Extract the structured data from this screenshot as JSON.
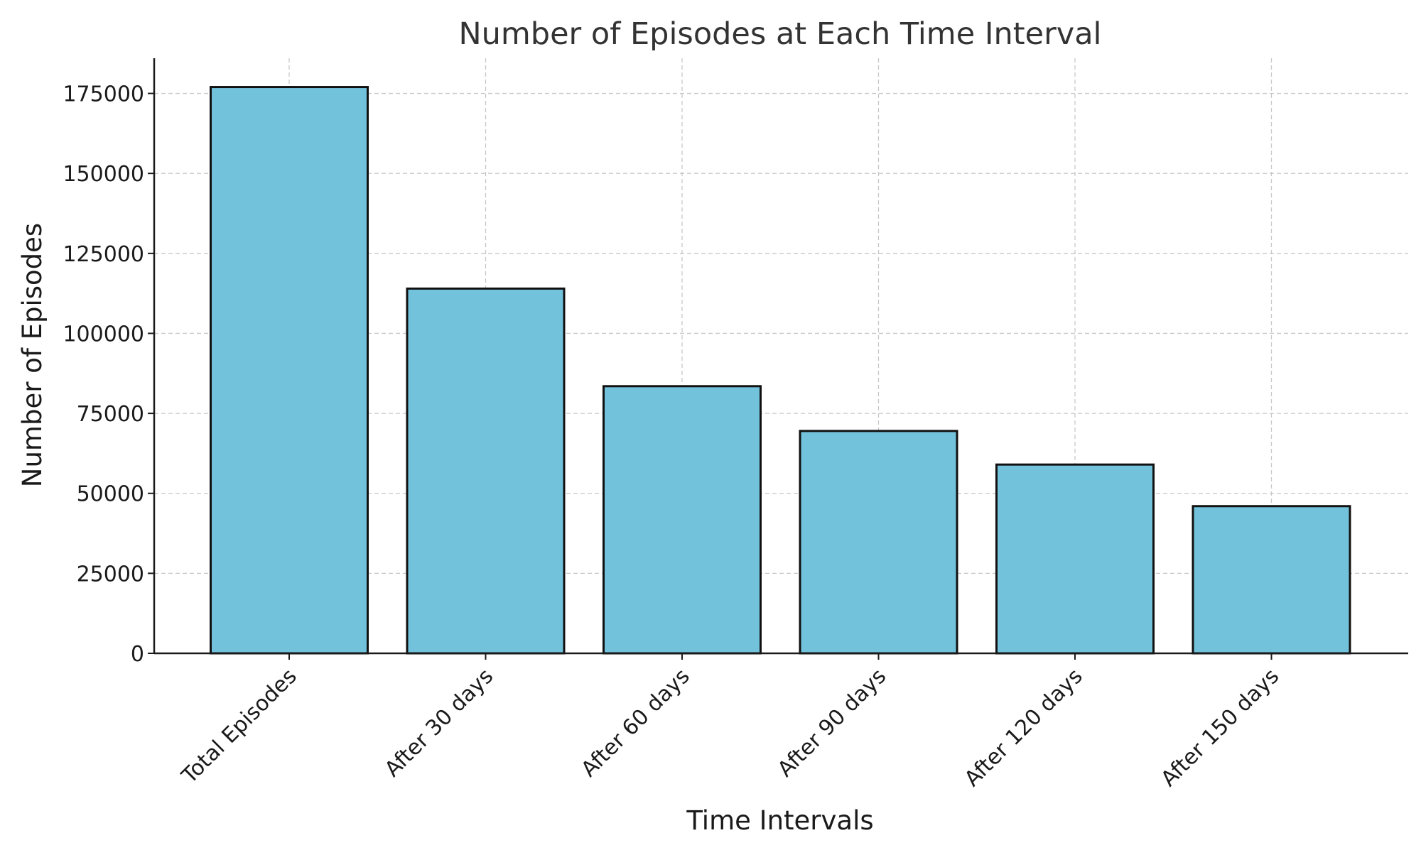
{
  "chart_data": {
    "type": "bar",
    "title": "Number of Episodes at Each Time Interval",
    "xlabel": "Time Intervals",
    "ylabel": "Number of Episodes",
    "categories": [
      "Total Episodes",
      "After 30 days",
      "After 60 days",
      "After 90 days",
      "After 120 days",
      "After 150 days"
    ],
    "values": [
      177000,
      114000,
      83500,
      69500,
      59000,
      46000
    ],
    "ylim": [
      0,
      186000
    ],
    "yticks": [
      0,
      25000,
      50000,
      75000,
      100000,
      125000,
      150000,
      175000
    ],
    "ytick_labels": [
      "0",
      "25000",
      "50000",
      "75000",
      "100000",
      "125000",
      "150000",
      "175000"
    ],
    "grid": true,
    "bar_color": "#73c2db",
    "edge_color": "#111111"
  }
}
